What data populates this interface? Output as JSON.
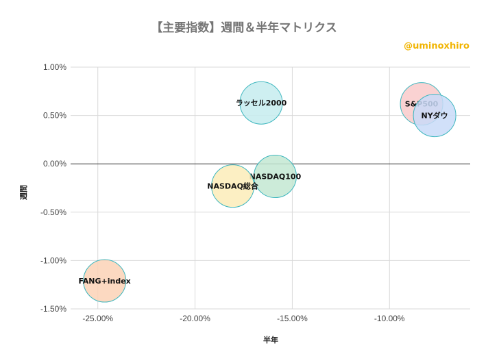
{
  "watermark": "@uminoxhiro",
  "watermark_color": "#f1b400",
  "chart_data": {
    "type": "scatter",
    "title": "【主要指数】週間＆半年マトリクス",
    "xlabel": "半年",
    "ylabel": "週間",
    "xlim": [
      -26.4,
      -5.85
    ],
    "ylim": [
      -1.5,
      1.0
    ],
    "grid": true,
    "legend": "none",
    "bubble_border_color": "#3cb6be",
    "xticks": [
      {
        "value": -25,
        "label": "-25.00%"
      },
      {
        "value": -20,
        "label": "-20.00%"
      },
      {
        "value": -15,
        "label": "-15.00%"
      },
      {
        "value": -10,
        "label": "-10.00%"
      }
    ],
    "yticks": [
      {
        "value": 1.0,
        "label": "1.00%"
      },
      {
        "value": 0.5,
        "label": "0.50%"
      },
      {
        "value": 0.0,
        "label": "0.00%"
      },
      {
        "value": -0.5,
        "label": "-0.50%"
      },
      {
        "value": -1.0,
        "label": "-1.00%"
      },
      {
        "value": -1.5,
        "label": "-1.50%"
      }
    ],
    "points": [
      {
        "label": "ラッセル2000",
        "x": -16.6,
        "y": 0.63,
        "color": "#c5ecee"
      },
      {
        "label": "S&P500",
        "x": -8.35,
        "y": 0.62,
        "color": "#f9caca"
      },
      {
        "label": "NYダウ",
        "x": -7.68,
        "y": 0.5,
        "color": "#c9dbf8"
      },
      {
        "label": "NASDAQ100",
        "x": -15.88,
        "y": -0.13,
        "color": "#c3e8d2"
      },
      {
        "label": "NASDAQ総合",
        "x": -18.06,
        "y": -0.23,
        "color": "#fcecb8"
      },
      {
        "label": "FANG+index",
        "x": -24.65,
        "y": -1.21,
        "color": "#fbd2b6"
      }
    ]
  }
}
